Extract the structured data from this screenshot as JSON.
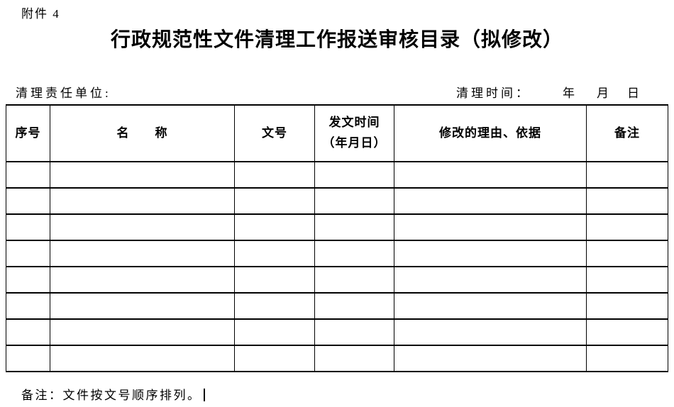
{
  "page": {
    "attachment_label": "附件 4",
    "title": "行政规范性文件清理工作报送审核目录（拟修改）"
  },
  "meta": {
    "unit_label": "清理责任单位:",
    "time_label": "清理时间：",
    "year_label": "年",
    "month_label": "月",
    "day_label": "日"
  },
  "table": {
    "row_count": 8,
    "columns": [
      {
        "label": "序号"
      },
      {
        "label": "名　　称"
      },
      {
        "label": "文号"
      },
      {
        "label_line1": "发文时间",
        "label_line2": "（年月日）"
      },
      {
        "label": "修改的理由、依据"
      },
      {
        "label": "备注"
      }
    ]
  },
  "footer": {
    "note": "备注：文件按文号顺序排列。"
  }
}
